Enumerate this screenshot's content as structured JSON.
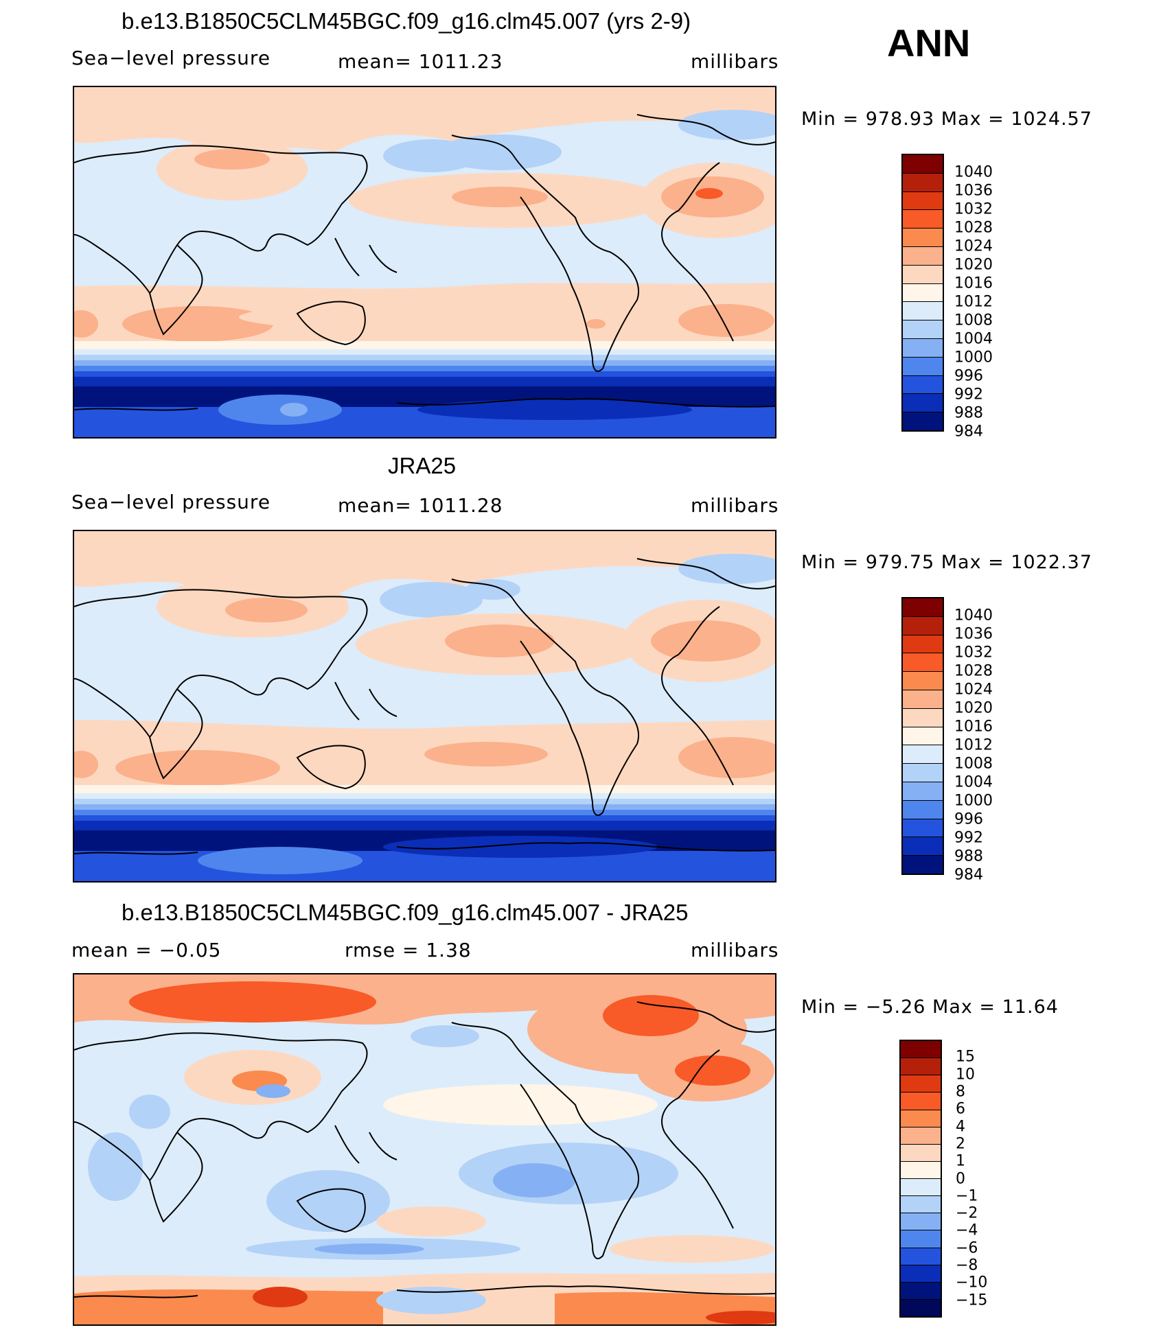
{
  "header": {
    "season": "ANN"
  },
  "panels": [
    {
      "title": "b.e13.B1850C5CLM45BGC.f09_g16.clm45.007 (yrs 2-9)",
      "left": "Sea−level pressure",
      "center": "mean=  1011.23",
      "right": "millibars",
      "minmax": "Min  =  978.93  Max  =  1024.57",
      "colorbar_labels": [
        "1040",
        "1036",
        "1032",
        "1028",
        "1024",
        "1020",
        "1016",
        "1012",
        "1008",
        "1004",
        "1000",
        "996",
        "992",
        "988",
        "984"
      ],
      "colorbar_colors": [
        "#7f0000",
        "#b5200b",
        "#e03a12",
        "#f85a28",
        "#fb8a4e",
        "#fbb18c",
        "#fdd8c0",
        "#fff5e8",
        "#dcecfb",
        "#b3d2f7",
        "#85b1f4",
        "#4f86ee",
        "#2453de",
        "#0a2eb8",
        "#00137c"
      ]
    },
    {
      "title": "JRA25",
      "left": "Sea−level pressure",
      "center": "mean=  1011.28",
      "right": "millibars",
      "minmax": "Min  =  979.75  Max  =  1022.37",
      "colorbar_labels": [
        "1040",
        "1036",
        "1032",
        "1028",
        "1024",
        "1020",
        "1016",
        "1012",
        "1008",
        "1004",
        "1000",
        "996",
        "992",
        "988",
        "984"
      ],
      "colorbar_colors": [
        "#7f0000",
        "#b5200b",
        "#e03a12",
        "#f85a28",
        "#fb8a4e",
        "#fbb18c",
        "#fdd8c0",
        "#fff5e8",
        "#dcecfb",
        "#b3d2f7",
        "#85b1f4",
        "#4f86ee",
        "#2453de",
        "#0a2eb8",
        "#00137c"
      ]
    },
    {
      "title": "b.e13.B1850C5CLM45BGC.f09_g16.clm45.007 - JRA25",
      "left": "mean  =    −0.05",
      "center": "rmse  =     1.38",
      "right": "millibars",
      "minmax": "Min  =   −5.26  Max  =    11.64",
      "colorbar_labels": [
        "15",
        "10",
        "8",
        "6",
        "4",
        "2",
        "1",
        "0",
        "−1",
        "−2",
        "−4",
        "−6",
        "−8",
        "−10",
        "−15"
      ],
      "colorbar_colors": [
        "#7f0000",
        "#b5200b",
        "#e03a12",
        "#f85a28",
        "#fb8a4e",
        "#fbb18c",
        "#fdd8c0",
        "#fff5e8",
        "#dcecfb",
        "#b3d2f7",
        "#85b1f4",
        "#4f86ee",
        "#2453de",
        "#0a2eb8",
        "#00137c",
        "#00085a"
      ]
    }
  ]
}
